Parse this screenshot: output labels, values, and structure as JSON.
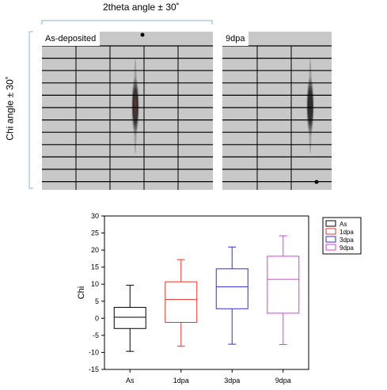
{
  "figure": {
    "top_axis_label": "2theta angle ± 30˚",
    "left_axis_label": "Chi angle ± 30˚",
    "panels": [
      {
        "label": "As-deposited",
        "streak_color": "#7a1f14"
      },
      {
        "label": "9dpa",
        "streak_color": "#111111"
      }
    ]
  },
  "chart_data": {
    "type": "box",
    "categories": [
      "As",
      "1dpa",
      "3dpa",
      "9dpa"
    ],
    "ylabel": "Chi",
    "xlabel": "",
    "ylim": [
      -15,
      30
    ],
    "yticks": [
      -15,
      -10,
      -5,
      0,
      5,
      10,
      15,
      20,
      25,
      30
    ],
    "grid": false,
    "legend_position": "top-right",
    "series": [
      {
        "name": "As",
        "color": "#000000",
        "whisker_low": -9.7,
        "q1": -3.0,
        "median": 0.3,
        "q3": 3.2,
        "whisker_high": 9.7
      },
      {
        "name": "1dpa",
        "color": "#e8332a",
        "whisker_low": -8.2,
        "q1": -1.2,
        "median": 5.5,
        "q3": 10.7,
        "whisker_high": 17.2
      },
      {
        "name": "3dpa",
        "color": "#2f2fd6",
        "whisker_low": -7.6,
        "q1": 2.8,
        "median": 9.2,
        "q3": 14.5,
        "whisker_high": 20.9
      },
      {
        "name": "9dpa",
        "color": "#e23ae0",
        "whisker_low": -7.7,
        "q1": 1.5,
        "median": 11.4,
        "q3": 18.2,
        "whisker_high": 24.2
      }
    ]
  }
}
